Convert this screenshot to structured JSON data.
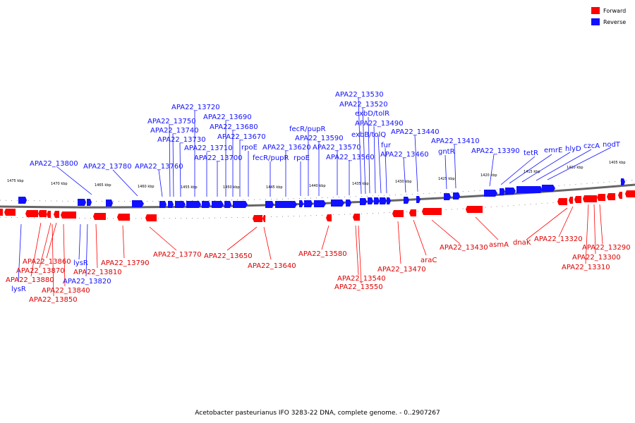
{
  "legend": {
    "forward_label": "Forward",
    "reverse_label": "Reverse",
    "forward_color": "#ff0000",
    "reverse_color": "#1010ff"
  },
  "caption": "Acetobacter pasteurianus IFO 3283-22 DNA, complete genome. - 0..2907267",
  "scale_ticks": [
    "1475 kbp",
    "1470 kbp",
    "1465 kbp",
    "1460 kbp",
    "1455 kbp",
    "1450 kbp",
    "1445 kbp",
    "1440 kbp",
    "1435 kbp",
    "1430 kbp",
    "1425 kbp",
    "1420 kbp",
    "1415 kbp",
    "1410 kbp",
    "1405 kbp"
  ],
  "reverse_genes": [
    "APA22_13800",
    "APA22_13780",
    "APA22_13760",
    "APA22_13750",
    "APA22_13740",
    "APA22_13730",
    "APA22_13720",
    "APA22_13710",
    "APA22_13700",
    "APA22_13690",
    "APA22_13680",
    "APA22_13670",
    "rpoE",
    "fecR/pupR",
    "APA22_13620",
    "rpoE",
    "fecR/pupR",
    "APA22_13590",
    "APA22_13570",
    "APA22_13560",
    "APA22_13530",
    "APA22_13520",
    "exbD/tolR",
    "APA22_13490",
    "exbB/tolQ",
    "fur",
    "APA22_13460",
    "APA22_13440",
    "gntR",
    "APA22_13410",
    "APA22_13390",
    "tetR",
    "emrE",
    "hlyD",
    "czcA",
    "nodT",
    "lysR",
    "lysR",
    "APA22_13820"
  ],
  "forward_genes": [
    "APA22_13860",
    "APA22_13870",
    "APA22_13880",
    "APA22_13810",
    "APA22_13840",
    "APA22_13850",
    "APA22_13790",
    "APA22_13770",
    "APA22_13650",
    "APA22_13640",
    "APA22_13580",
    "APA22_13540",
    "APA22_13550",
    "APA22_13470",
    "araC",
    "APA22_13430",
    "asmA",
    "dnaK",
    "APA22_13320",
    "APA22_13290",
    "APA22_13300",
    "APA22_13310"
  ]
}
